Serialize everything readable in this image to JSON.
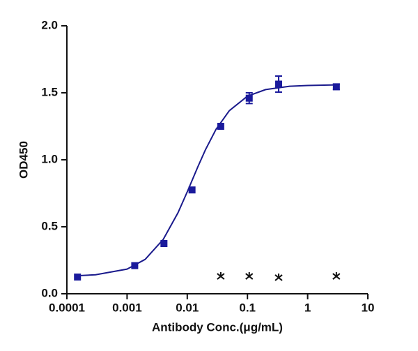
{
  "chart_data": {
    "type": "scatter",
    "x_label": "Antibody Conc.(μg/mL)",
    "y_label": "OD450",
    "xscale": "log",
    "xlim": [
      0.0001,
      10
    ],
    "xticks": [
      0.0001,
      0.001,
      0.01,
      0.1,
      1,
      10
    ],
    "ylim": [
      0,
      2
    ],
    "yticks": [
      {
        "value": 0,
        "label": "0.0"
      },
      {
        "value": 0.5,
        "label": "0.5"
      },
      {
        "value": 1,
        "label": "1.0"
      },
      {
        "value": 1.5,
        "label": "1.5"
      },
      {
        "value": 2,
        "label": "2.0"
      }
    ],
    "series": [
      {
        "type": "line",
        "color": "#1a1a8c",
        "x": [
          0.00015,
          0.0003,
          0.001,
          0.002,
          0.004,
          0.007,
          0.01,
          0.015,
          0.02,
          0.03,
          0.05,
          0.1,
          0.2,
          0.5,
          1,
          3
        ],
        "values": [
          0.135,
          0.142,
          0.184,
          0.257,
          0.407,
          0.604,
          0.761,
          0.948,
          1.074,
          1.227,
          1.367,
          1.475,
          1.524,
          1.549,
          1.555,
          1.559
        ]
      },
      {
        "type": "scatter",
        "marker": "square",
        "color": "#1a1a9c",
        "x": [
          0.00015,
          0.00134,
          0.0041,
          0.012,
          0.036,
          0.107,
          0.33,
          3.0
        ],
        "values": [
          0.125,
          0.21,
          0.375,
          0.775,
          1.25,
          1.46,
          1.565,
          1.545
        ],
        "errors": [
          null,
          null,
          null,
          null,
          null,
          0.04,
          0.06,
          0.02
        ]
      },
      {
        "type": "scatter",
        "marker": "asterisk",
        "color": "#111111",
        "x": [
          0.036,
          0.107,
          0.33,
          3.0
        ],
        "values": [
          0.13,
          0.13,
          0.12,
          0.13
        ]
      }
    ]
  }
}
